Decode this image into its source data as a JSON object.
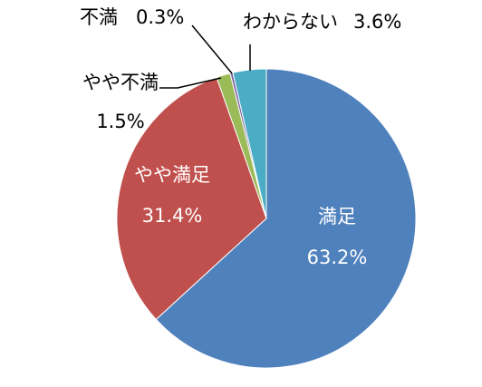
{
  "chart_data": {
    "type": "pie",
    "title": "",
    "slices": [
      {
        "label": "満足",
        "value": 63.2,
        "value_text": "63.2%",
        "color": "#4F81BD"
      },
      {
        "label": "やや満足",
        "value": 31.4,
        "value_text": "31.4%",
        "color": "#C0504D"
      },
      {
        "label": "やや不満",
        "value": 1.5,
        "value_text": "1.5%",
        "color": "#9BBB59"
      },
      {
        "label": "不満",
        "value": 0.3,
        "value_text": "0.3%",
        "color": "#8064A2"
      },
      {
        "label": "わからない",
        "value": 3.6,
        "value_text": "3.6%",
        "color": "#4BACC6"
      }
    ],
    "start_angle": "12 o'clock",
    "direction": "clockwise",
    "legend": "none"
  }
}
